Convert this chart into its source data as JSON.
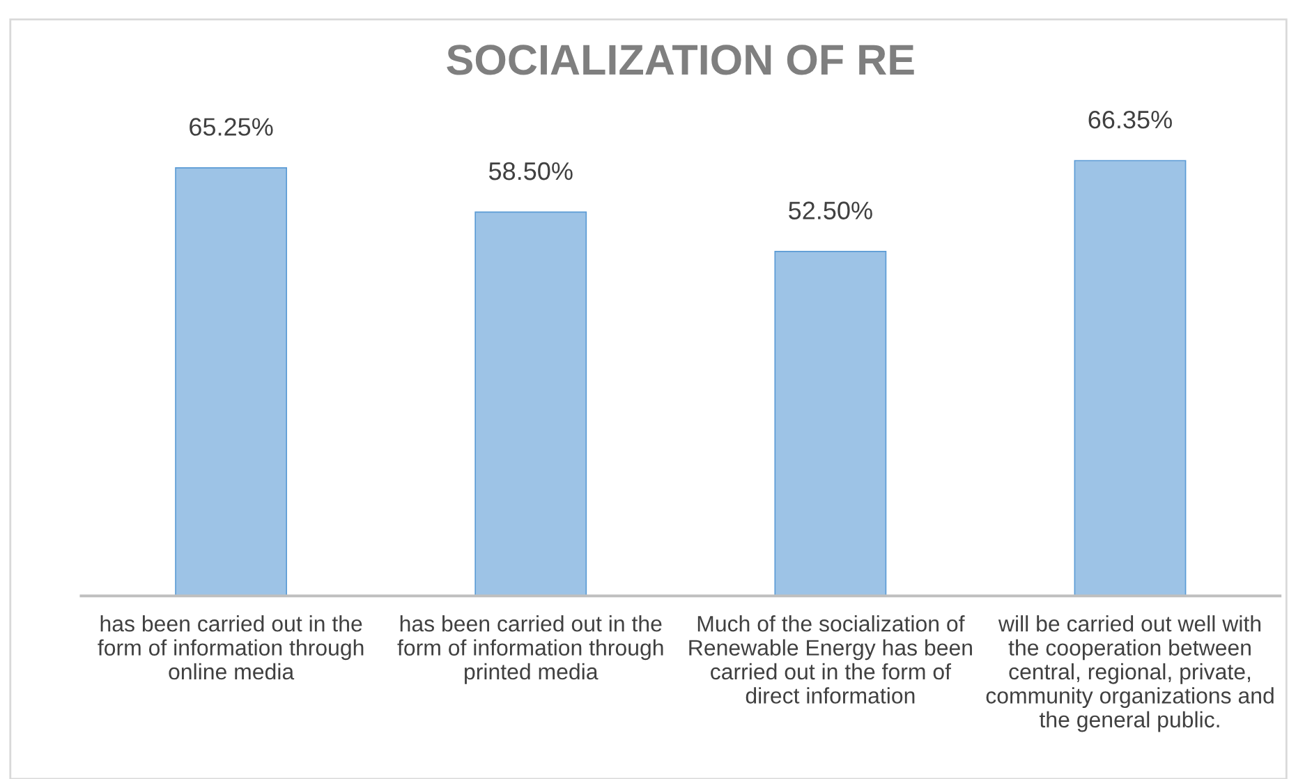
{
  "chart_data": {
    "type": "bar",
    "title": "SOCIALIZATION OF RE",
    "categories": [
      "has been carried out in the\nform of information through\nonline media",
      "has been carried out in the\nform of information through\nprinted media",
      "Much of the socialization of\nRenewable Energy has been\ncarried out in the form of\ndirect information",
      "will be carried out well with\nthe cooperation between\ncentral, regional, private,\ncommunity organizations and\nthe general public."
    ],
    "values": [
      65.25,
      58.5,
      52.5,
      66.35
    ],
    "value_labels": [
      "65.25%",
      "58.50%",
      "52.50%",
      "66.35%"
    ],
    "color": "#9dc3e6"
  }
}
